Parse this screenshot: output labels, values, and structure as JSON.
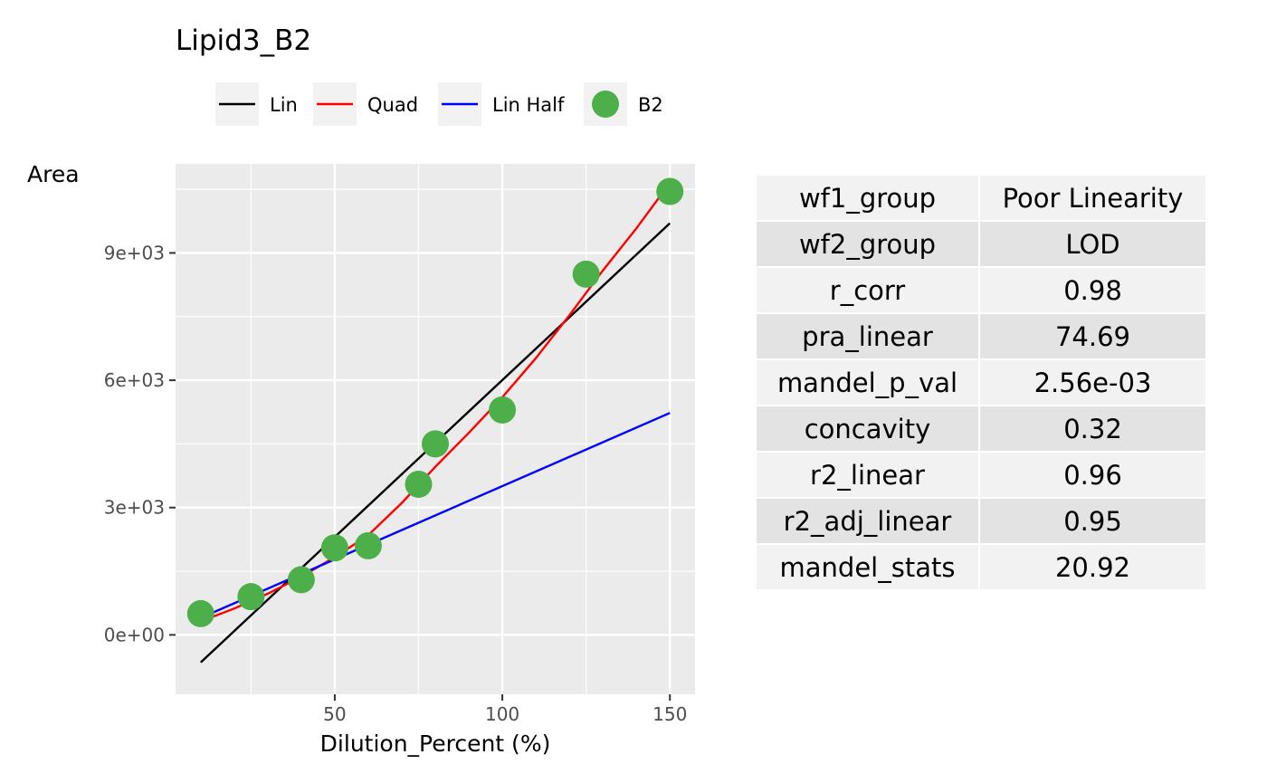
{
  "chart_data": {
    "type": "scatter",
    "title": "Lipid3_B2",
    "xlabel": "Dilution_Percent (%)",
    "ylabel": "Area",
    "xlim": [
      2.5,
      157.5
    ],
    "ylim": [
      -1400,
      11100
    ],
    "x_ticks": [
      50,
      100,
      150
    ],
    "x_tick_labels": [
      "50",
      "100",
      "150"
    ],
    "x_minor_ticks": [
      25,
      75,
      125
    ],
    "y_ticks": [
      0,
      3000,
      6000,
      9000
    ],
    "y_tick_labels": [
      "0e+00",
      "3e+03",
      "6e+03",
      "9e+03"
    ],
    "y_minor_ticks": [
      -1500,
      1500,
      4500,
      7500,
      10500
    ],
    "grid": true,
    "legend_position": "top",
    "points": {
      "name": "B2",
      "color": "#4daf4a",
      "x": [
        10,
        25,
        40,
        50,
        60,
        75,
        80,
        100,
        125,
        150
      ],
      "y": [
        500,
        900,
        1300,
        2050,
        2100,
        3550,
        4500,
        5300,
        8500,
        10450
      ]
    },
    "series": [
      {
        "name": "Lin",
        "color": "#000000",
        "type": "linear",
        "x": [
          10,
          150
        ],
        "y": [
          -650,
          9700
        ]
      },
      {
        "name": "Quad",
        "color": "#ff0000",
        "type": "quadratic",
        "x": [
          10,
          20,
          30,
          40,
          50,
          60,
          70,
          80,
          90,
          100,
          110,
          120,
          130,
          140,
          150
        ],
        "y": [
          320,
          620,
          970,
          1370,
          1830,
          2350,
          3110,
          3960,
          4760,
          5600,
          6520,
          7530,
          8590,
          9580,
          10650
        ]
      },
      {
        "name": "Lin Half",
        "color": "#0000ff",
        "type": "linear",
        "x": [
          10,
          150
        ],
        "y": [
          400,
          5230
        ]
      }
    ]
  },
  "legend": [
    {
      "label": "Lin",
      "kind": "line",
      "color": "#000000"
    },
    {
      "label": "Quad",
      "kind": "line",
      "color": "#ff0000"
    },
    {
      "label": "Lin Half",
      "kind": "line",
      "color": "#0000ff"
    },
    {
      "label": "B2",
      "kind": "point",
      "color": "#4daf4a"
    }
  ],
  "stats_table": [
    {
      "name": "wf1_group",
      "value": "Poor Linearity"
    },
    {
      "name": "wf2_group",
      "value": "LOD"
    },
    {
      "name": "r_corr",
      "value": "0.98"
    },
    {
      "name": "pra_linear",
      "value": "74.69"
    },
    {
      "name": "mandel_p_val",
      "value": "2.56e-03"
    },
    {
      "name": "concavity",
      "value": "0.32"
    },
    {
      "name": "r2_linear",
      "value": "0.96"
    },
    {
      "name": "r2_adj_linear",
      "value": "0.95"
    },
    {
      "name": "mandel_stats",
      "value": "20.92"
    }
  ]
}
